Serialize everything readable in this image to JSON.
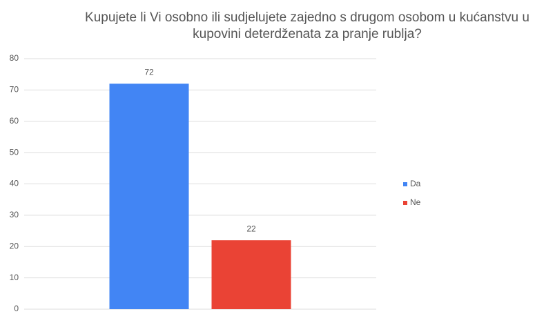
{
  "chart_data": {
    "type": "bar",
    "title": "Kupujete li Vi osobno ili sudjelujete zajedno s drugom osobom u kućanstvu u kupovini deterdženata za pranje rublja?",
    "categories": [
      null
    ],
    "series": [
      {
        "name": "Da",
        "color": "#4285f4",
        "values": [
          72
        ]
      },
      {
        "name": "Ne",
        "color": "#ea4335",
        "values": [
          22
        ]
      }
    ],
    "ylim": [
      0,
      80
    ],
    "yticks": [
      0,
      10,
      20,
      30,
      40,
      50,
      60,
      70,
      80
    ],
    "grid": true,
    "legend": "right"
  }
}
